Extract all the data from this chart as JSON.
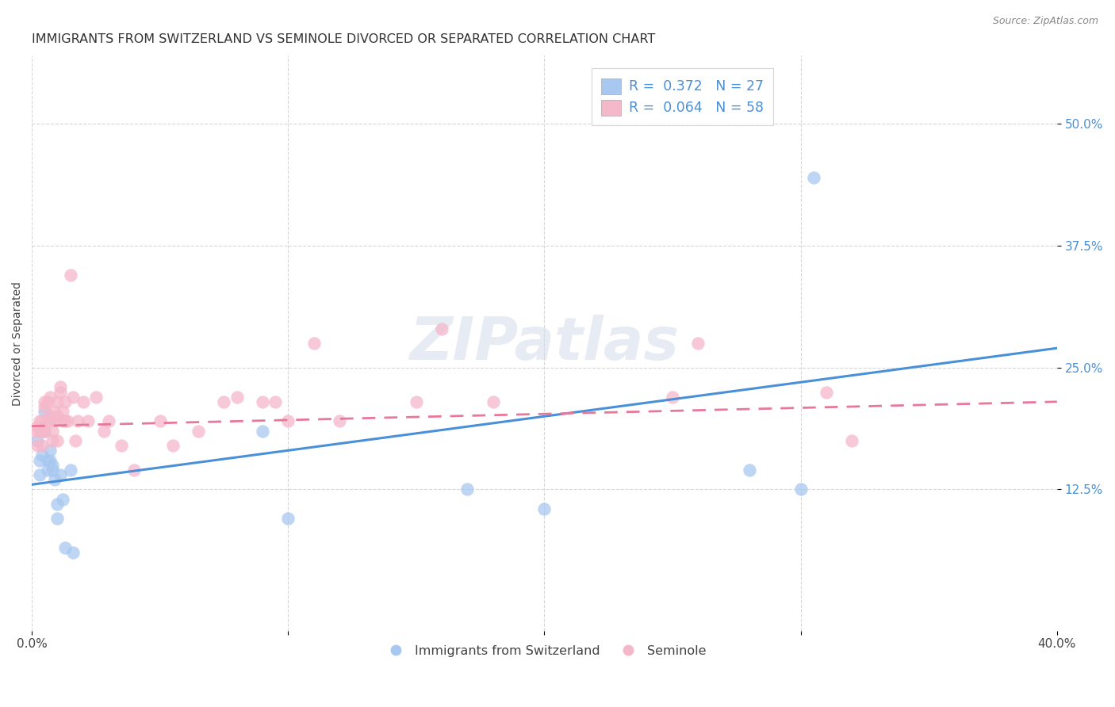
{
  "title": "IMMIGRANTS FROM SWITZERLAND VS SEMINOLE DIVORCED OR SEPARATED CORRELATION CHART",
  "source": "Source: ZipAtlas.com",
  "ylabel": "Divorced or Separated",
  "ytick_vals": [
    0.125,
    0.25,
    0.375,
    0.5
  ],
  "ytick_labels": [
    "12.5%",
    "25.0%",
    "37.5%",
    "50.0%"
  ],
  "xlim": [
    0.0,
    0.4
  ],
  "ylim": [
    -0.02,
    0.57
  ],
  "legend1_label": "R =  0.372   N = 27",
  "legend2_label": "R =  0.064   N = 58",
  "blue_color": "#a8c8f0",
  "pink_color": "#f5b8cb",
  "blue_line_color": "#4a90d9",
  "pink_line_color": "#e8789a",
  "blue_x": [
    0.002,
    0.003,
    0.003,
    0.004,
    0.005,
    0.005,
    0.006,
    0.006,
    0.007,
    0.007,
    0.008,
    0.008,
    0.009,
    0.01,
    0.01,
    0.011,
    0.012,
    0.013,
    0.015,
    0.016,
    0.09,
    0.1,
    0.17,
    0.2,
    0.28,
    0.3,
    0.305
  ],
  "blue_y": [
    0.175,
    0.155,
    0.14,
    0.16,
    0.205,
    0.185,
    0.155,
    0.145,
    0.165,
    0.155,
    0.145,
    0.15,
    0.135,
    0.11,
    0.095,
    0.14,
    0.115,
    0.065,
    0.145,
    0.06,
    0.185,
    0.095,
    0.125,
    0.105,
    0.145,
    0.125,
    0.445
  ],
  "pink_x": [
    0.001,
    0.002,
    0.002,
    0.003,
    0.003,
    0.004,
    0.004,
    0.004,
    0.005,
    0.005,
    0.005,
    0.006,
    0.006,
    0.007,
    0.007,
    0.007,
    0.008,
    0.008,
    0.009,
    0.009,
    0.01,
    0.01,
    0.01,
    0.011,
    0.011,
    0.012,
    0.012,
    0.013,
    0.013,
    0.014,
    0.015,
    0.016,
    0.017,
    0.018,
    0.02,
    0.022,
    0.025,
    0.028,
    0.03,
    0.035,
    0.04,
    0.05,
    0.055,
    0.065,
    0.075,
    0.08,
    0.09,
    0.095,
    0.1,
    0.11,
    0.12,
    0.15,
    0.16,
    0.18,
    0.25,
    0.26,
    0.31,
    0.32
  ],
  "pink_y": [
    0.185,
    0.19,
    0.17,
    0.185,
    0.195,
    0.185,
    0.17,
    0.195,
    0.185,
    0.21,
    0.215,
    0.215,
    0.195,
    0.2,
    0.22,
    0.195,
    0.185,
    0.175,
    0.195,
    0.205,
    0.2,
    0.215,
    0.175,
    0.23,
    0.225,
    0.205,
    0.195,
    0.195,
    0.215,
    0.195,
    0.345,
    0.22,
    0.175,
    0.195,
    0.215,
    0.195,
    0.22,
    0.185,
    0.195,
    0.17,
    0.145,
    0.195,
    0.17,
    0.185,
    0.215,
    0.22,
    0.215,
    0.215,
    0.195,
    0.275,
    0.195,
    0.215,
    0.29,
    0.215,
    0.22,
    0.275,
    0.225,
    0.175
  ],
  "background_color": "#ffffff",
  "grid_color": "#cccccc",
  "title_fontsize": 11.5,
  "axis_label_fontsize": 10,
  "tick_fontsize": 11,
  "legend_fontsize": 12.5,
  "watermark_text": "ZIPatlas",
  "bottom_legend": [
    "Immigrants from Switzerland",
    "Seminole"
  ],
  "blue_line_start_y": 0.13,
  "blue_line_end_y": 0.27,
  "pink_line_start_y": 0.19,
  "pink_line_end_y": 0.215
}
